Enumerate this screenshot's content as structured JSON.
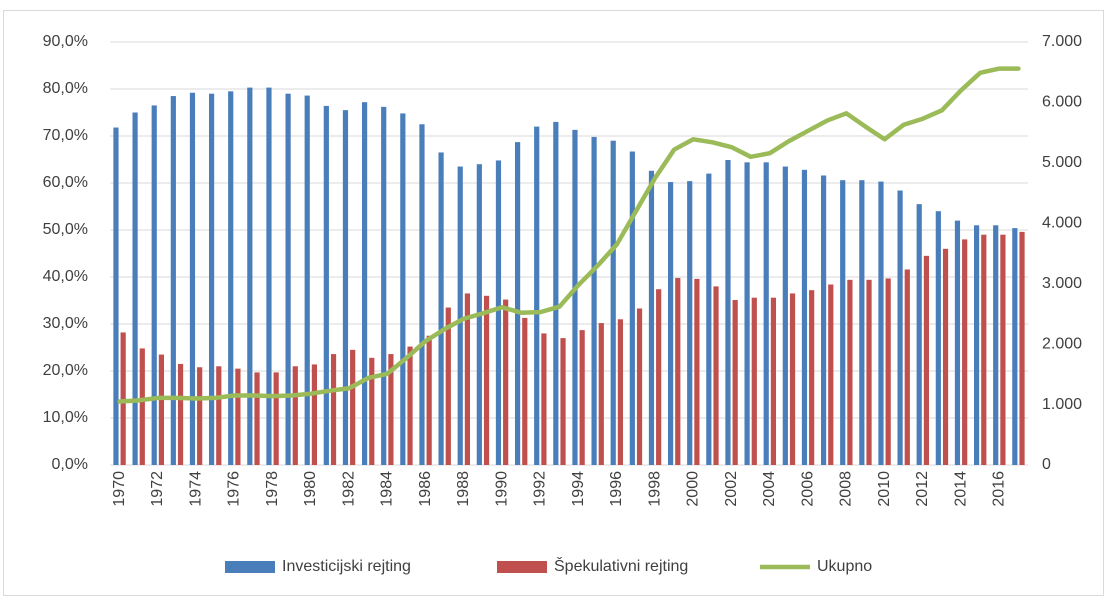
{
  "chart_data": {
    "type": "bar",
    "categories": [
      "1970",
      null,
      "1972",
      null,
      "1974",
      null,
      "1976",
      null,
      "1978",
      null,
      "1980",
      null,
      "1982",
      null,
      "1984",
      null,
      "1986",
      null,
      "1988",
      null,
      "1990",
      null,
      "1992",
      null,
      "1994",
      null,
      "1996",
      null,
      "1998",
      null,
      "2000",
      null,
      "2002",
      null,
      "2004",
      null,
      "2006",
      null,
      "2008",
      null,
      "2010",
      null,
      "2012",
      null,
      "2014",
      null,
      "2016",
      null
    ],
    "series": [
      {
        "name": "Investicijski rejting",
        "color": "#4a7ebb",
        "type": "bar",
        "values": [
          71.8,
          75,
          76.5,
          78.5,
          79.2,
          79,
          79.5,
          80.3,
          80.3,
          79,
          78.6,
          76.4,
          75.5,
          77.2,
          76.2,
          74.8,
          72.5,
          66.5,
          63.5,
          64,
          64.8,
          68.7,
          72,
          73,
          71.3,
          69.8,
          69,
          66.7,
          62.6,
          60.2,
          60.4,
          62,
          64.9,
          64.4,
          64.4,
          63.5,
          62.8,
          61.6,
          60.6,
          60.6,
          60.3,
          58.4,
          55.5,
          54,
          52,
          51,
          51,
          50.4
        ]
      },
      {
        "name": "Špekulativni rejting",
        "color": "#c0504d",
        "type": "bar",
        "values": [
          28.2,
          24.8,
          23.5,
          21.5,
          20.8,
          21,
          20.5,
          19.7,
          19.7,
          21,
          21.4,
          23.6,
          24.5,
          22.8,
          23.6,
          25.2,
          27.5,
          33.5,
          36.5,
          36,
          35.2,
          31.3,
          28,
          27,
          28.7,
          30.2,
          31,
          33.3,
          37.4,
          39.8,
          39.6,
          38,
          35.1,
          35.6,
          35.6,
          36.5,
          37.2,
          38.4,
          39.4,
          39.4,
          39.7,
          41.6,
          44.5,
          46,
          48,
          49,
          49,
          49.6
        ]
      },
      {
        "name": "Ukupno",
        "color": "#9bbb59",
        "type": "line",
        "axis": "y2",
        "values": [
          1050,
          1070,
          1110,
          1110,
          1100,
          1110,
          1150,
          1150,
          1140,
          1150,
          1180,
          1230,
          1270,
          1440,
          1510,
          1770,
          2050,
          2250,
          2420,
          2510,
          2610,
          2520,
          2530,
          2620,
          2980,
          3300,
          3650,
          4200,
          4750,
          5220,
          5390,
          5340,
          5260,
          5100,
          5160,
          5360,
          5530,
          5700,
          5820,
          5600,
          5390,
          5630,
          5730,
          5870,
          6200,
          6490,
          6560,
          6560
        ]
      }
    ],
    "ylim": [
      0,
      90
    ],
    "yticks": [
      {
        "value": 0,
        "label": "0,0%"
      },
      {
        "value": 10,
        "label": "10,0%"
      },
      {
        "value": 20,
        "label": "20,0%"
      },
      {
        "value": 30,
        "label": "30,0%"
      },
      {
        "value": 40,
        "label": "40,0%"
      },
      {
        "value": 50,
        "label": "50,0%"
      },
      {
        "value": 60,
        "label": "60,0%"
      },
      {
        "value": 70,
        "label": "70,0%"
      },
      {
        "value": 80,
        "label": "80,0%"
      },
      {
        "value": 90,
        "label": "90,0%"
      }
    ],
    "y2lim": [
      0,
      7000
    ],
    "y2ticks": [
      0,
      {
        "value": 1000,
        "label": "1.000"
      },
      {
        "value": 2000,
        "label": "2.000"
      },
      {
        "value": 3000,
        "label": "3.000"
      },
      {
        "value": 4000,
        "label": "4.000"
      },
      {
        "value": 5000,
        "label": "5.000"
      },
      {
        "value": 6000,
        "label": "6.000"
      },
      {
        "value": 7000,
        "label": "7.000"
      }
    ],
    "grid": true,
    "legend": "bottom"
  }
}
